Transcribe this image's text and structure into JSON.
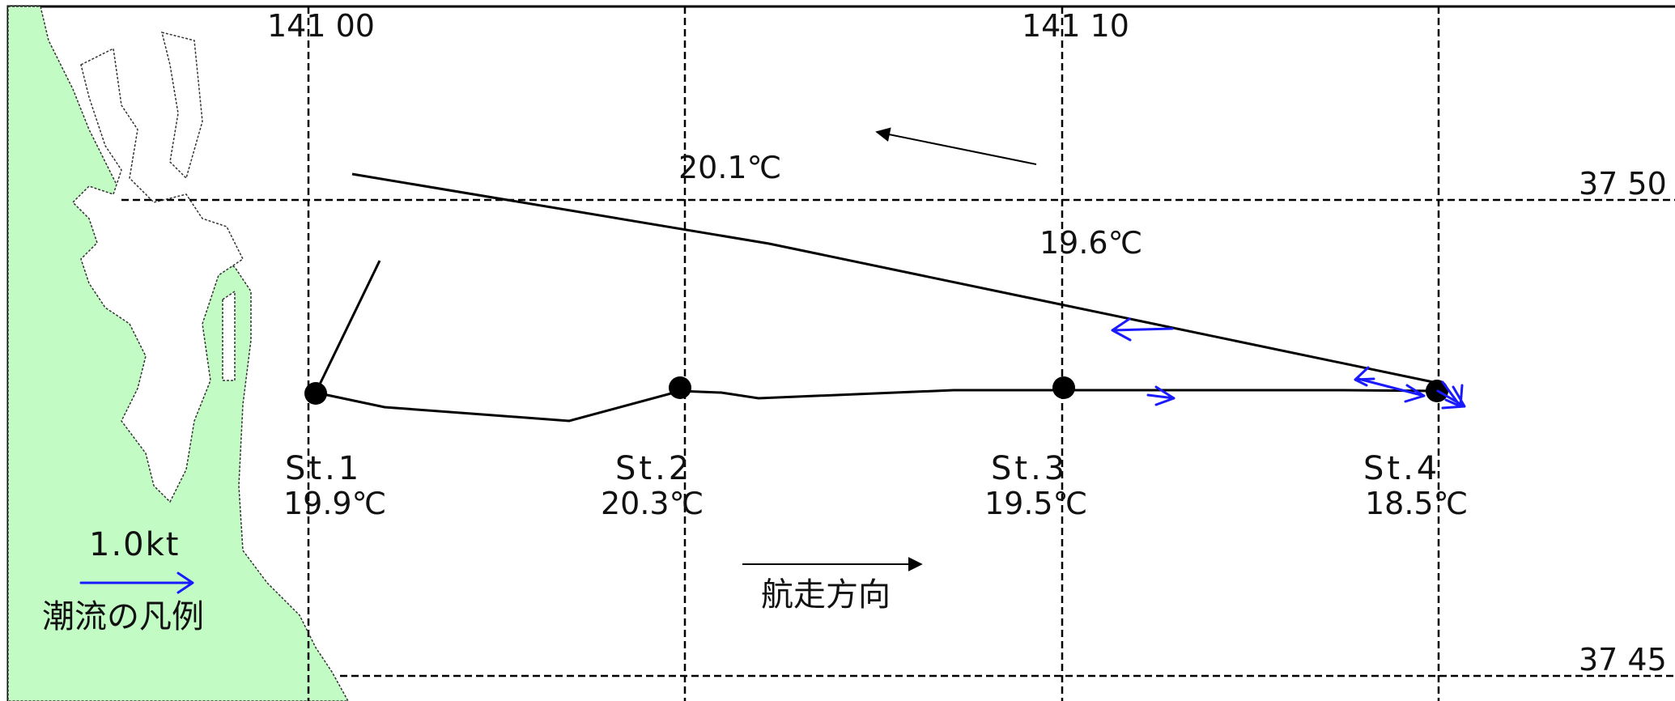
{
  "map": {
    "longitude_labels": [
      "141 00",
      "141 10"
    ],
    "latitude_labels": [
      "37 50",
      "37 45"
    ],
    "stations": [
      {
        "id": "st1",
        "label": "St.1",
        "temp": "19.9℃"
      },
      {
        "id": "st2",
        "label": "St.2",
        "temp": "20.3℃"
      },
      {
        "id": "st3",
        "label": "St.3",
        "temp": "19.5℃"
      },
      {
        "id": "st4",
        "label": "St.4",
        "temp": "18.5℃"
      }
    ],
    "return_track_temps": [
      "20.1℃",
      "19.6℃"
    ],
    "travel_direction_label": "航走方向",
    "legend": {
      "scale_label": "1.0kt",
      "caption": "潮流の凡例"
    },
    "colors": {
      "land": "#c2fcc4",
      "current_arrow": "#1a1aff",
      "track": "#000000",
      "grid": "#000000"
    }
  }
}
